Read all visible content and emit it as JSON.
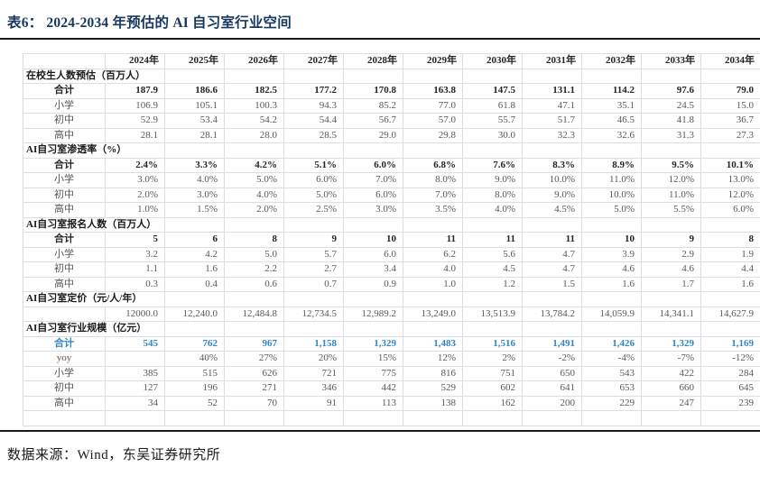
{
  "page": {
    "title": "表6：  2024-2034 年预估的 AI 自习室行业空间",
    "source_note": "数据来源：Wind，东吴证券研究所"
  },
  "colors": {
    "title_navy": "#17375E",
    "rule_dark": "#1A1A1A",
    "grid_border": "#DBDFE5",
    "text_primary": "#262626",
    "text_secondary": "#595959",
    "highlight_blue": "#2E86C8"
  },
  "table": {
    "corner_label": "",
    "years": [
      "2024年",
      "2025年",
      "2026年",
      "2027年",
      "2028年",
      "2029年",
      "2030年",
      "2031年",
      "2032年",
      "2033年",
      "2034年"
    ],
    "sections": [
      {
        "header": "在校生人数预估（百万人）",
        "rows": [
          {
            "label": "合计",
            "style": "total",
            "values": [
              "187.9",
              "186.6",
              "182.5",
              "177.2",
              "170.8",
              "163.8",
              "147.5",
              "131.1",
              "114.2",
              "97.6",
              "79.0"
            ]
          },
          {
            "label": "小学",
            "style": "sub",
            "values": [
              "106.9",
              "105.1",
              "100.3",
              "94.3",
              "85.2",
              "77.0",
              "61.8",
              "47.1",
              "35.1",
              "24.5",
              "15.0"
            ]
          },
          {
            "label": "初中",
            "style": "sub",
            "values": [
              "52.9",
              "53.4",
              "54.2",
              "54.4",
              "56.7",
              "57.0",
              "55.7",
              "51.7",
              "46.5",
              "41.8",
              "36.7"
            ]
          },
          {
            "label": "高中",
            "style": "sub",
            "values": [
              "28.1",
              "28.1",
              "28.0",
              "28.5",
              "29.0",
              "29.8",
              "30.0",
              "32.3",
              "32.6",
              "31.3",
              "27.3"
            ]
          }
        ]
      },
      {
        "header": "AI自习室渗透率（%）",
        "rows": [
          {
            "label": "合计",
            "style": "total",
            "values": [
              "2.4%",
              "3.3%",
              "4.2%",
              "5.1%",
              "6.0%",
              "6.8%",
              "7.6%",
              "8.3%",
              "8.9%",
              "9.5%",
              "10.1%"
            ]
          },
          {
            "label": "小学",
            "style": "sub",
            "values": [
              "3.0%",
              "4.0%",
              "5.0%",
              "6.0%",
              "7.0%",
              "8.0%",
              "9.0%",
              "10.0%",
              "11.0%",
              "12.0%",
              "13.0%"
            ]
          },
          {
            "label": "初中",
            "style": "sub",
            "values": [
              "2.0%",
              "3.0%",
              "4.0%",
              "5.0%",
              "6.0%",
              "7.0%",
              "8.0%",
              "9.0%",
              "10.0%",
              "11.0%",
              "12.0%"
            ]
          },
          {
            "label": "高中",
            "style": "sub",
            "values": [
              "1.0%",
              "1.5%",
              "2.0%",
              "2.5%",
              "3.0%",
              "3.5%",
              "4.0%",
              "4.5%",
              "5.0%",
              "5.5%",
              "6.0%"
            ]
          }
        ]
      },
      {
        "header": "AI自习室报名人数（百万人）",
        "rows": [
          {
            "label": "合计",
            "style": "total",
            "values": [
              "5",
              "6",
              "8",
              "9",
              "10",
              "11",
              "11",
              "11",
              "10",
              "9",
              "8"
            ]
          },
          {
            "label": "小学",
            "style": "sub",
            "values": [
              "3.2",
              "4.2",
              "5.0",
              "5.7",
              "6.0",
              "6.2",
              "5.6",
              "4.7",
              "3.9",
              "2.9",
              "1.9"
            ]
          },
          {
            "label": "初中",
            "style": "sub",
            "values": [
              "1.1",
              "1.6",
              "2.2",
              "2.7",
              "3.4",
              "4.0",
              "4.5",
              "4.7",
              "4.6",
              "4.6",
              "4.4"
            ]
          },
          {
            "label": "高中",
            "style": "sub",
            "values": [
              "0.3",
              "0.4",
              "0.6",
              "0.7",
              "0.9",
              "1.0",
              "1.2",
              "1.5",
              "1.6",
              "1.7",
              "1.6"
            ]
          }
        ]
      },
      {
        "header": "AI自习室定价（元/人/年）",
        "rows": [
          {
            "label": "",
            "style": "sub",
            "values": [
              "12000.0",
              "12,240.0",
              "12,484.8",
              "12,734.5",
              "12,989.2",
              "13,249.0",
              "13,513.9",
              "13,784.2",
              "14,059.9",
              "14,341.1",
              "14,627.9"
            ]
          }
        ]
      },
      {
        "header": "AI自习室行业规模（亿元）",
        "rows": [
          {
            "label": "合计",
            "style": "blue",
            "values": [
              "545",
              "762",
              "967",
              "1,158",
              "1,329",
              "1,483",
              "1,516",
              "1,491",
              "1,426",
              "1,329",
              "1,169"
            ]
          },
          {
            "label": "yoy",
            "style": "sub",
            "values": [
              "",
              "40%",
              "27%",
              "20%",
              "15%",
              "12%",
              "2%",
              "-2%",
              "-4%",
              "-7%",
              "-12%"
            ]
          },
          {
            "label": "小学",
            "style": "sub",
            "values": [
              "385",
              "515",
              "626",
              "721",
              "775",
              "816",
              "751",
              "650",
              "543",
              "422",
              "284"
            ]
          },
          {
            "label": "初中",
            "style": "sub",
            "values": [
              "127",
              "196",
              "271",
              "346",
              "442",
              "529",
              "602",
              "641",
              "653",
              "660",
              "645"
            ]
          },
          {
            "label": "高中",
            "style": "sub",
            "values": [
              "34",
              "52",
              "70",
              "91",
              "113",
              "138",
              "162",
              "200",
              "229",
              "247",
              "239"
            ]
          },
          {
            "label": "",
            "style": "empty",
            "values": [
              "",
              "",
              "",
              "",
              "",
              "",
              "",
              "",
              "",
              "",
              ""
            ]
          }
        ]
      }
    ]
  }
}
